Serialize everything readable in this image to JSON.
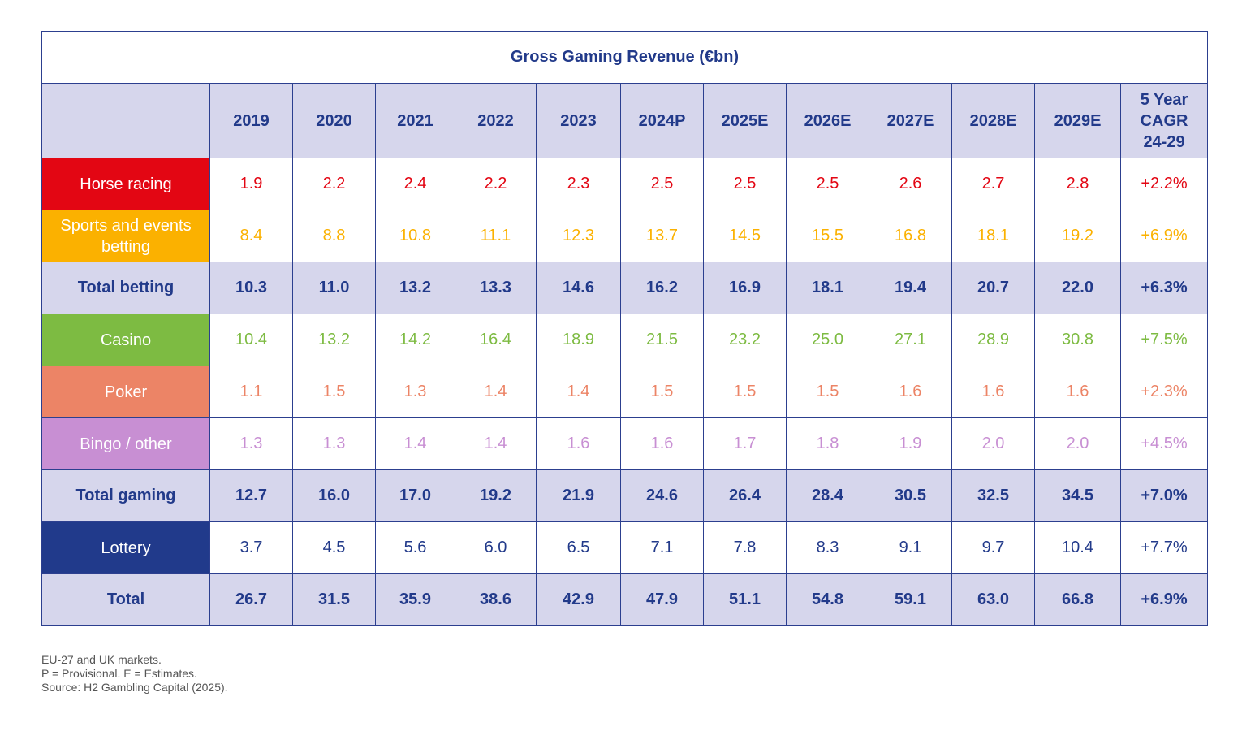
{
  "chart_data": {
    "type": "table",
    "title": "Gross Gaming Revenue (€bn)",
    "columns": [
      "2019",
      "2020",
      "2021",
      "2022",
      "2023",
      "2024P",
      "2025E",
      "2026E",
      "2027E",
      "2028E",
      "2029E",
      "5 Year CAGR 24-29"
    ],
    "cagr_header_lines": [
      "5 Year",
      "CAGR",
      "24-29"
    ],
    "rows": [
      {
        "label": "Horse racing",
        "kind": "category",
        "color": "#e30613",
        "values": [
          "1.9",
          "2.2",
          "2.4",
          "2.2",
          "2.3",
          "2.5",
          "2.5",
          "2.5",
          "2.6",
          "2.7",
          "2.8"
        ],
        "cagr": "+2.2%"
      },
      {
        "label": "Sports and events betting",
        "kind": "category",
        "color": "#fbb100",
        "values": [
          "8.4",
          "8.8",
          "10.8",
          "11.1",
          "12.3",
          "13.7",
          "14.5",
          "15.5",
          "16.8",
          "18.1",
          "19.2"
        ],
        "cagr": "+6.9%"
      },
      {
        "label": "Total betting",
        "kind": "total",
        "color": "#223a8a",
        "values": [
          "10.3",
          "11.0",
          "13.2",
          "13.3",
          "14.6",
          "16.2",
          "16.9",
          "18.1",
          "19.4",
          "20.7",
          "22.0"
        ],
        "cagr": "+6.3%"
      },
      {
        "label": "Casino",
        "kind": "category",
        "color": "#7dbb42",
        "values": [
          "10.4",
          "13.2",
          "14.2",
          "16.4",
          "18.9",
          "21.5",
          "23.2",
          "25.0",
          "27.1",
          "28.9",
          "30.8"
        ],
        "cagr": "+7.5%"
      },
      {
        "label": "Poker",
        "kind": "category",
        "color": "#ec8466",
        "values": [
          "1.1",
          "1.5",
          "1.3",
          "1.4",
          "1.4",
          "1.5",
          "1.5",
          "1.5",
          "1.6",
          "1.6",
          "1.6"
        ],
        "cagr": "+2.3%"
      },
      {
        "label": "Bingo / other",
        "kind": "category",
        "color": "#c88fd3",
        "values": [
          "1.3",
          "1.3",
          "1.4",
          "1.4",
          "1.6",
          "1.6",
          "1.7",
          "1.8",
          "1.9",
          "2.0",
          "2.0"
        ],
        "cagr": "+4.5%"
      },
      {
        "label": "Total gaming",
        "kind": "total",
        "color": "#223a8a",
        "values": [
          "12.7",
          "16.0",
          "17.0",
          "19.2",
          "21.9",
          "24.6",
          "26.4",
          "28.4",
          "30.5",
          "32.5",
          "34.5"
        ],
        "cagr": "+7.0%"
      },
      {
        "label": "Lottery",
        "kind": "category",
        "color": "#213a8b",
        "values": [
          "3.7",
          "4.5",
          "5.6",
          "6.0",
          "6.5",
          "7.1",
          "7.8",
          "8.3",
          "9.1",
          "9.7",
          "10.4"
        ],
        "cagr": "+7.7%"
      },
      {
        "label": "Total",
        "kind": "total",
        "color": "#223a8a",
        "values": [
          "26.7",
          "31.5",
          "35.9",
          "38.6",
          "42.9",
          "47.9",
          "51.1",
          "54.8",
          "59.1",
          "63.0",
          "66.8"
        ],
        "cagr": "+6.9%"
      }
    ]
  },
  "notes": [
    "EU-27 and UK markets.",
    "P = Provisional. E = Estimates.",
    "Source: H2 Gambling Capital (2025)."
  ],
  "colors": {
    "border": "#2c3f8f",
    "header_bg": "#d6d6ec",
    "header_text": "#223a8a",
    "lottery_value_text": "#223a8a"
  }
}
